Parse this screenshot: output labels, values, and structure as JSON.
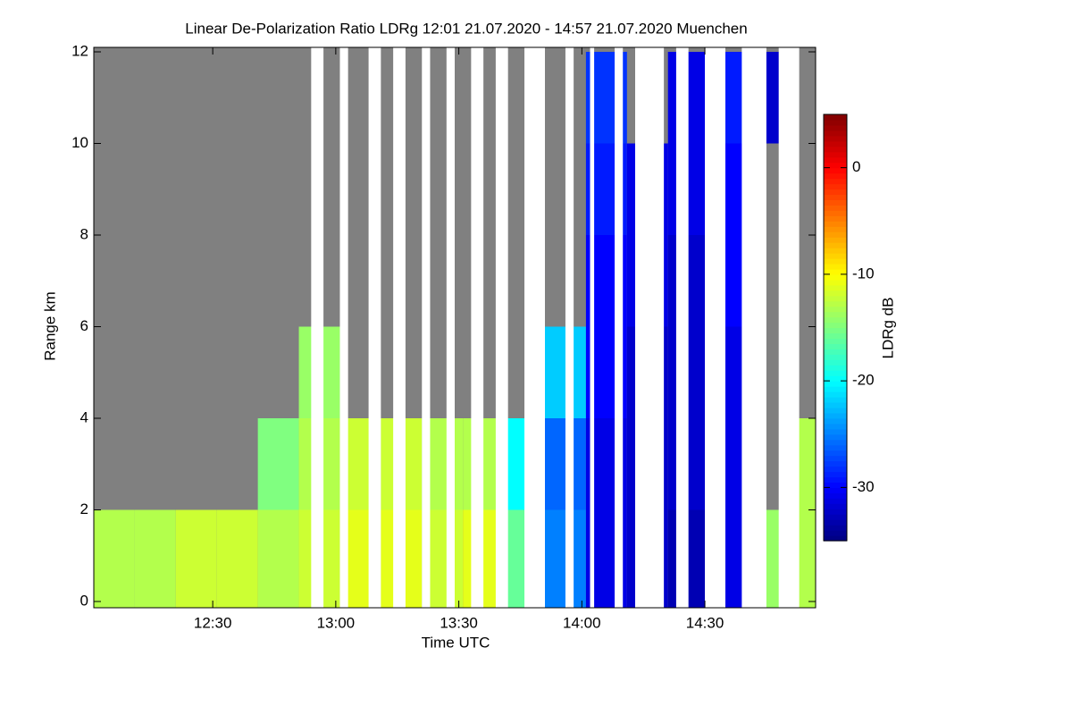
{
  "chart_data": {
    "type": "heatmap",
    "title": "Linear De-Polarization Ratio LDRg   12:01 21.07.2020 - 14:57 21.07.2020 Muenchen",
    "x_label": "Time UTC",
    "y_label": "Range km",
    "colorbar_label": "LDRg dB",
    "colormap": "jet",
    "xlim": [
      "12:01",
      "14:57"
    ],
    "xticks": [
      "12:30",
      "13:00",
      "13:30",
      "14:00",
      "14:30"
    ],
    "ylim": [
      0,
      12
    ],
    "yticks": [
      0,
      2,
      4,
      6,
      8,
      10,
      12
    ],
    "zlim": [
      -35,
      5
    ],
    "zticks": [
      0,
      -10,
      -20,
      -30
    ],
    "x": [
      "12:01",
      "12:11",
      "12:21",
      "12:31",
      "12:41",
      "12:51",
      "13:01",
      "13:11",
      "13:21",
      "13:31",
      "13:41",
      "13:51",
      "14:01",
      "14:11",
      "14:21",
      "14:31",
      "14:41",
      "14:51",
      "14:57"
    ],
    "y": [
      0,
      2,
      4,
      6,
      8,
      10,
      12
    ],
    "values": [
      [
        -13,
        null,
        null,
        null,
        null,
        null
      ],
      [
        -13,
        null,
        null,
        null,
        null,
        null
      ],
      [
        -12,
        null,
        null,
        null,
        null,
        null
      ],
      [
        -12,
        null,
        null,
        null,
        null,
        null
      ],
      [
        -13,
        -15,
        null,
        null,
        null,
        null
      ],
      [
        -12,
        -13,
        -14,
        null,
        null,
        null
      ],
      [
        -11,
        -12,
        null,
        null,
        null,
        null
      ],
      [
        -11,
        -12,
        null,
        null,
        null,
        null
      ],
      [
        -12,
        -13,
        null,
        null,
        null,
        null
      ],
      [
        -11,
        -13,
        null,
        null,
        null,
        null
      ],
      [
        -16,
        -20,
        null,
        null,
        null,
        null
      ],
      [
        -25,
        -26,
        -22,
        null,
        null,
        null
      ],
      [
        -31,
        -31,
        -30,
        -30,
        -29,
        -28
      ],
      [
        -32,
        -32,
        -32,
        -31,
        -31,
        null
      ],
      [
        -33,
        -32,
        -32,
        -32,
        -31,
        -31
      ],
      [
        -31,
        -31,
        -31,
        -30,
        -30,
        -29
      ],
      [
        -14,
        null,
        null,
        null,
        null,
        -32
      ],
      [
        -13,
        -13,
        null,
        null,
        null,
        null
      ]
    ],
    "gaps": [
      [
        "12:54",
        "12:57"
      ],
      [
        "13:01",
        "13:03"
      ],
      [
        "13:08",
        "13:11"
      ],
      [
        "13:14",
        "13:17"
      ],
      [
        "13:21",
        "13:23"
      ],
      [
        "13:27",
        "13:29"
      ],
      [
        "13:33",
        "13:36"
      ],
      [
        "13:39",
        "13:42"
      ],
      [
        "13:46",
        "13:51"
      ],
      [
        "13:56",
        "13:58"
      ],
      [
        "14:02",
        "14:03"
      ],
      [
        "14:08",
        "14:10"
      ],
      [
        "14:13",
        "14:20"
      ],
      [
        "14:23",
        "14:26"
      ],
      [
        "14:30",
        "14:35"
      ],
      [
        "14:39",
        "14:45"
      ],
      [
        "14:48",
        "14:53"
      ]
    ]
  }
}
